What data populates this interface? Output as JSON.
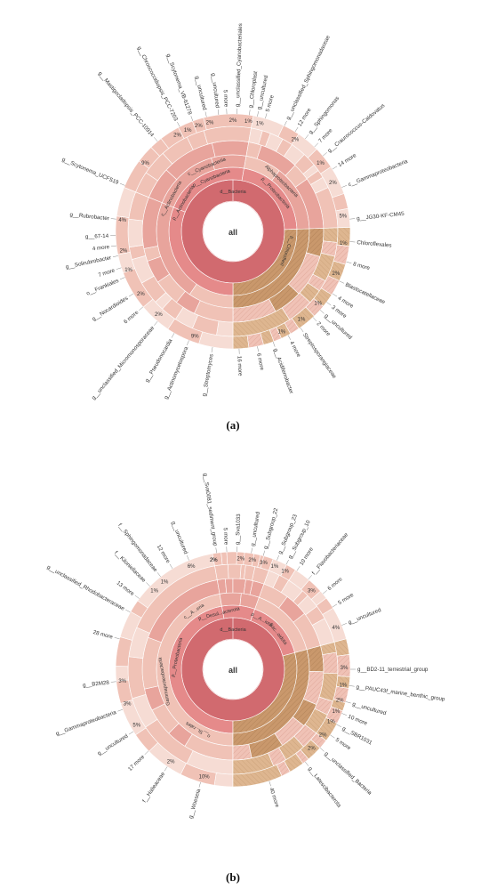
{
  "colors": {
    "bacteria": "#d16a6f",
    "bacteria_light": "#e58a8a",
    "pink_mid": "#e8a49c",
    "pink_light": "#f0c2b6",
    "pink_pale": "#f6dcd4",
    "tan": "#c9986c",
    "tan_light": "#deb690",
    "tan_pale": "#ecd2b8",
    "text": "#333333"
  },
  "chart_data": [
    {
      "type": "sunburst",
      "panel_label": "(a)",
      "root_label": "all",
      "ring_labels": [
        {
          "text": "d__Bacteria",
          "angle": 0,
          "ring": 0
        },
        {
          "text": "p__Cyanobacteria",
          "angle": -22,
          "ring": 1
        },
        {
          "text": "p__Proteobacteria",
          "angle": 48,
          "ring": 1
        },
        {
          "text": "p__Actinobacteria",
          "angle": -60,
          "ring": 1
        },
        {
          "text": "c__Cyanobacteriia",
          "angle": -22,
          "ring": 2
        },
        {
          "text": "Alphaproteobacteria",
          "angle": 44,
          "ring": 2
        },
        {
          "text": "c__Actinobacteria",
          "angle": -62,
          "ring": 2
        },
        {
          "text": "p__Chloroflexi",
          "angle": 110,
          "ring": 1
        }
      ],
      "sectors": [
        {
          "name": "Cyanobacteria",
          "start": -68,
          "end": 10,
          "shade": "pink_mid",
          "pattern": false
        },
        {
          "name": "Proteobacteria",
          "start": 10,
          "end": 88,
          "shade": "pink_light",
          "pattern": false
        },
        {
          "name": "Chloroflexi",
          "start": 88,
          "end": 180,
          "shade": "tan",
          "pattern": true
        },
        {
          "name": "Actinobacteria",
          "start": 180,
          "end": 292,
          "shade": "pink_light",
          "pattern": false
        }
      ],
      "outer_labels": [
        {
          "text": "g__unclassified_Cyanobacteriales",
          "angle": 2
        },
        {
          "text": "g__Chloroplast",
          "angle": 8
        },
        {
          "text": "g__uncultured",
          "angle": 12
        },
        {
          "text": "5 more",
          "angle": 16
        },
        {
          "text": "g__unclassified_Sphingomonadaceae",
          "angle": 26
        },
        {
          "text": "12 more",
          "angle": 32
        },
        {
          "text": "g__Sphingomonas",
          "angle": 38
        },
        {
          "text": "7 more",
          "angle": 44
        },
        {
          "text": "g__Craurococcus-Caldovatus",
          "angle": 50
        },
        {
          "text": "14 more",
          "angle": 58
        },
        {
          "text": "c__Gammaproteobacteria",
          "angle": 68
        },
        {
          "text": "g__JG30-KF-CM45",
          "angle": 84
        },
        {
          "text": "Chloroflexales",
          "angle": 95
        },
        {
          "text": "8 more",
          "angle": 105
        },
        {
          "text": "Blastocatellaceae",
          "angle": 115
        },
        {
          "text": "4 more",
          "angle": 122
        },
        {
          "text": "3 more",
          "angle": 127
        },
        {
          "text": "g__uncultured",
          "angle": 132
        },
        {
          "text": "2 more",
          "angle": 137
        },
        {
          "text": "Streptosporangiaceae",
          "angle": 145
        },
        {
          "text": "4 more",
          "angle": 152
        },
        {
          "text": "g__Acidiferrobacter",
          "angle": 160
        },
        {
          "text": "6 more",
          "angle": 168
        },
        {
          "text": "16 more",
          "angle": 177
        },
        {
          "text": "g__Streptomyces",
          "angle": 190
        },
        {
          "text": "g__Actinomycetospora",
          "angle": 202
        },
        {
          "text": "g__Pseudonocardia",
          "angle": 210
        },
        {
          "text": "g__unclassified_Micromonosporaceae",
          "angle": 220
        },
        {
          "text": "6 more",
          "angle": 230
        },
        {
          "text": "g__Nocardioides",
          "angle": 238
        },
        {
          "text": "o__Frankiales",
          "angle": 247
        },
        {
          "text": "7 more",
          "angle": 252
        },
        {
          "text": "g__Solirubrobacter",
          "angle": 258
        },
        {
          "text": "4 more",
          "angle": 263
        },
        {
          "text": "g__67-14",
          "angle": 268
        },
        {
          "text": "g__Rubrobacter",
          "angle": 276
        },
        {
          "text": "g__Scytonema_UCFS19",
          "angle": 293
        },
        {
          "text": "g__Mastigocladopsis_PCC-10914",
          "angle": 320
        },
        {
          "text": "g__Chroococcidiopsis_PCC-7203",
          "angle": 333
        },
        {
          "text": "g__Scytonema_VB-61278",
          "angle": 340
        },
        {
          "text": "g__uncultured",
          "angle": 347
        },
        {
          "text": "g__uncultured",
          "angle": 353
        },
        {
          "text": "5 more",
          "angle": 357
        }
      ],
      "percent_labels": [
        {
          "text": "9%",
          "angle": -52
        },
        {
          "text": "2%",
          "angle": -30
        },
        {
          "text": "1%",
          "angle": -24
        },
        {
          "text": "2%",
          "angle": -18
        },
        {
          "text": "2%",
          "angle": -12
        },
        {
          "text": "2%",
          "angle": 0
        },
        {
          "text": "1%",
          "angle": 8
        },
        {
          "text": "1%",
          "angle": 14
        },
        {
          "text": "2%",
          "angle": 34
        },
        {
          "text": "1%",
          "angle": 52
        },
        {
          "text": "2%",
          "angle": 64
        },
        {
          "text": "5%",
          "angle": 82
        },
        {
          "text": "1%",
          "angle": 96
        },
        {
          "text": "2%",
          "angle": 112
        },
        {
          "text": "1%",
          "angle": 130
        },
        {
          "text": "1%",
          "angle": 142
        },
        {
          "text": "1%",
          "angle": 154
        },
        {
          "text": "9%",
          "angle": 200
        },
        {
          "text": "2%",
          "angle": 222
        },
        {
          "text": "2%",
          "angle": 236
        },
        {
          "text": "1%",
          "angle": 250
        },
        {
          "text": "2%",
          "angle": 260
        },
        {
          "text": "4%",
          "angle": 276
        }
      ]
    },
    {
      "type": "sunburst",
      "panel_label": "(b)",
      "root_label": "all",
      "ring_labels": [
        {
          "text": "d__Bacteria",
          "angle": 0,
          "ring": 0
        },
        {
          "text": "p__Proteobacteria",
          "angle": -78,
          "ring": 1
        },
        {
          "text": "Gammaproteobacteria",
          "angle": -100,
          "ring": 2
        },
        {
          "text": "p__Desul...acterota",
          "angle": -14,
          "ring": 1
        },
        {
          "text": "p__A...iota",
          "angle": 30,
          "ring": 1
        },
        {
          "text": "Bac...oidota",
          "angle": 52,
          "ring": 1
        },
        {
          "text": "c__A...eria",
          "angle": -34,
          "ring": 2
        },
        {
          "text": "o__St...rales",
          "angle": -150,
          "ring": 2
        }
      ],
      "sectors": [
        {
          "name": "Proteobacteria",
          "start": 180,
          "end": 350,
          "shade": "pink_light",
          "pattern": false
        },
        {
          "name": "Desulfobacterota",
          "start": 350,
          "end": 20,
          "shade": "pink_mid",
          "pattern": false
        },
        {
          "name": "Acidobacteriota",
          "start": 20,
          "end": 75,
          "shade": "pink_light",
          "pattern": false
        },
        {
          "name": "Patescibacteria",
          "start": 75,
          "end": 180,
          "shade": "tan",
          "pattern": true
        }
      ],
      "outer_labels": [
        {
          "text": "g__Sva0081_sediment_group",
          "angle": 352
        },
        {
          "text": "5 more",
          "angle": 357
        },
        {
          "text": "g__Sva1033",
          "angle": 2
        },
        {
          "text": "g__uncultured",
          "angle": 9
        },
        {
          "text": "g__Subgroup_22",
          "angle": 15
        },
        {
          "text": "g__Subgroup_23",
          "angle": 22
        },
        {
          "text": "g__Subgroup_10",
          "angle": 27
        },
        {
          "text": "10 more",
          "angle": 33
        },
        {
          "text": "f__Flavobacteriaceae",
          "angle": 40
        },
        {
          "text": "6 more",
          "angle": 50
        },
        {
          "text": "5 more",
          "angle": 58
        },
        {
          "text": "g__uncultured",
          "angle": 68
        },
        {
          "text": "g__BD2-11_terrestrial_group",
          "angle": 90
        },
        {
          "text": "g__PAUC43f_marine_benthic_group",
          "angle": 98
        },
        {
          "text": "g__uncultured",
          "angle": 106
        },
        {
          "text": "10 more",
          "angle": 112
        },
        {
          "text": "g__SBR1031",
          "angle": 118
        },
        {
          "text": "5 more",
          "angle": 124
        },
        {
          "text": "g__unclassified_Bacteria",
          "angle": 132
        },
        {
          "text": "g__Latescibacterota",
          "angle": 142
        },
        {
          "text": "40 more",
          "angle": 162
        },
        {
          "text": "g__Woeseia",
          "angle": 196
        },
        {
          "text": "f__Halieaceae",
          "angle": 214
        },
        {
          "text": "17 more",
          "angle": 226
        },
        {
          "text": "g__uncultured",
          "angle": 238
        },
        {
          "text": "g__Gammaproteobacteria",
          "angle": 250
        },
        {
          "text": "g__B2M28",
          "angle": 264
        },
        {
          "text": "28 more",
          "angle": 285
        },
        {
          "text": "g__unclassified_Rhodobacteraceae",
          "angle": 299
        },
        {
          "text": "13 more",
          "angle": 307
        },
        {
          "text": "f__Kiloniellaceae",
          "angle": 315
        },
        {
          "text": "f__Sphingomonadaceae",
          "angle": 322
        },
        {
          "text": "12 more",
          "angle": 329
        },
        {
          "text": "g__uncultured",
          "angle": 338
        }
      ],
      "percent_labels": [
        {
          "text": "2%",
          "angle": -10
        },
        {
          "text": "2%",
          "angle": 4
        },
        {
          "text": "2%",
          "angle": 10
        },
        {
          "text": "3%",
          "angle": 16
        },
        {
          "text": "1%",
          "angle": 22
        },
        {
          "text": "1%",
          "angle": 28
        },
        {
          "text": "3%",
          "angle": 45
        },
        {
          "text": "4%",
          "angle": 68
        },
        {
          "text": "3%",
          "angle": 89
        },
        {
          "text": "1%",
          "angle": 98
        },
        {
          "text": "2%",
          "angle": 106
        },
        {
          "text": "1%",
          "angle": 112
        },
        {
          "text": "1%",
          "angle": 118
        },
        {
          "text": "2%",
          "angle": 126
        },
        {
          "text": "2%",
          "angle": 135
        },
        {
          "text": "10%",
          "angle": 195
        },
        {
          "text": "2%",
          "angle": 214
        },
        {
          "text": "5%",
          "angle": 240
        },
        {
          "text": "3%",
          "angle": 252
        },
        {
          "text": "3%",
          "angle": 264
        },
        {
          "text": "1%",
          "angle": 315
        },
        {
          "text": "1%",
          "angle": 322
        },
        {
          "text": "6%",
          "angle": 338
        },
        {
          "text": "2%",
          "angle": 350
        }
      ]
    }
  ]
}
